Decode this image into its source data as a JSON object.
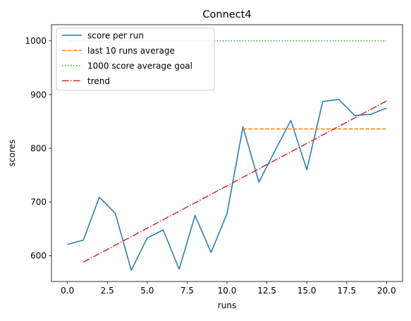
{
  "chart_data": {
    "type": "line",
    "title": "Connect4",
    "xlabel": "runs",
    "ylabel": "scores",
    "xlim": [
      -1,
      21
    ],
    "ylim": [
      552,
      1030
    ],
    "x_ticks": [
      0.0,
      2.5,
      5.0,
      7.5,
      10.0,
      12.5,
      15.0,
      17.5,
      20.0
    ],
    "x_tick_labels": [
      "0.0",
      "2.5",
      "5.0",
      "7.5",
      "10.0",
      "12.5",
      "15.0",
      "17.5",
      "20.0"
    ],
    "y_ticks": [
      600,
      700,
      800,
      900,
      1000
    ],
    "y_tick_labels": [
      "600",
      "700",
      "800",
      "900",
      "1000"
    ],
    "grid": false,
    "legend_position": "top-left",
    "series": [
      {
        "name": "score per run",
        "style": "solid",
        "color": "#1f77b4",
        "x": [
          0,
          1,
          2,
          3,
          4,
          5,
          6,
          7,
          8,
          9,
          10,
          11,
          12,
          13,
          14,
          15,
          16,
          17,
          18,
          19,
          20
        ],
        "y": [
          621,
          629,
          709,
          679,
          573,
          633,
          648,
          575,
          675,
          606,
          678,
          840,
          737,
          795,
          852,
          760,
          887,
          891,
          861,
          863,
          875
        ]
      },
      {
        "name": "last 10 runs average",
        "style": "dashed",
        "color": "#ff7f0e",
        "x": [
          11,
          20
        ],
        "y": [
          836,
          836
        ]
      },
      {
        "name": "1000 score average goal",
        "style": "dotted",
        "color": "#2ca02c",
        "x": [
          0,
          20
        ],
        "y": [
          1000,
          1000
        ]
      },
      {
        "name": "trend",
        "style": "dashdot",
        "color": "#d62728",
        "x": [
          1,
          20
        ],
        "y": [
          588,
          888
        ]
      }
    ]
  }
}
